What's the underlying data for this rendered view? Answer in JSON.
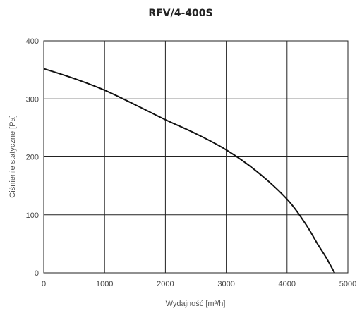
{
  "chart_data": {
    "type": "line",
    "title": "RFV/4-400S",
    "xlabel": "Wydajność [m³/h]",
    "ylabel": "Ciśnienie statyczne [Pa]",
    "xlim": [
      0,
      5000
    ],
    "ylim": [
      0,
      400
    ],
    "xticks": [
      "0",
      "1000",
      "2000",
      "3000",
      "4000",
      "5000"
    ],
    "yticks": [
      "0",
      "100",
      "200",
      "300",
      "400"
    ],
    "grid": true,
    "series": [
      {
        "color": "#111111",
        "x": [
          0,
          500,
          1000,
          1500,
          2000,
          2500,
          3000,
          3500,
          4000,
          4300,
          4500,
          4650,
          4780
        ],
        "y": [
          352,
          335,
          315,
          290,
          264,
          240,
          212,
          175,
          127,
          85,
          50,
          25,
          0
        ]
      }
    ]
  }
}
